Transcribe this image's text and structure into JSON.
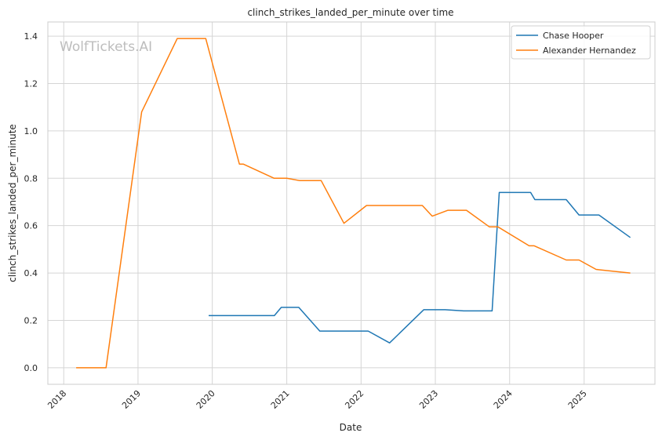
{
  "chart_data": {
    "type": "line",
    "title": "clinch_strikes_landed_per_minute over time",
    "xlabel": "Date",
    "ylabel": "clinch_strikes_landed_per_minute",
    "watermark": "WolfTickets.AI",
    "xlim": [
      "2017-10-15",
      "2025-12-15"
    ],
    "ylim": [
      -0.07,
      1.46
    ],
    "x_ticks": [
      "2018-01-01",
      "2019-01-01",
      "2020-01-01",
      "2021-01-01",
      "2022-01-01",
      "2023-01-01",
      "2024-01-01",
      "2025-01-01"
    ],
    "x_tick_labels": [
      "2018",
      "2019",
      "2020",
      "2021",
      "2022",
      "2023",
      "2024",
      "2025"
    ],
    "y_ticks": [
      0.0,
      0.2,
      0.4,
      0.6,
      0.8,
      1.0,
      1.2,
      1.4
    ],
    "y_tick_labels": [
      "0.0",
      "0.2",
      "0.4",
      "0.6",
      "0.8",
      "1.0",
      "1.2",
      "1.4"
    ],
    "grid": true,
    "legend_position": "top-right",
    "colors": {
      "grid": "#d5d5d5",
      "spine": "#cccccc"
    },
    "series": [
      {
        "name": "Chase Hooper",
        "color": "#1f77b4",
        "x": [
          "2019-12-14",
          "2020-11-01",
          "2020-12-05",
          "2021-03-01",
          "2021-06-12",
          "2022-02-05",
          "2022-05-21",
          "2022-11-05",
          "2023-02-18",
          "2023-05-20",
          "2023-10-07",
          "2023-11-11",
          "2024-04-13",
          "2024-05-04",
          "2024-10-05",
          "2024-12-07",
          "2025-03-15",
          "2025-08-16"
        ],
        "values": [
          0.22,
          0.22,
          0.255,
          0.255,
          0.155,
          0.155,
          0.105,
          0.245,
          0.245,
          0.24,
          0.24,
          0.74,
          0.74,
          0.71,
          0.71,
          0.645,
          0.645,
          0.55
        ]
      },
      {
        "name": "Alexander Hernandez",
        "color": "#ff7f0e",
        "x": [
          "2018-03-03",
          "2018-07-28",
          "2019-01-19",
          "2019-07-13",
          "2019-11-30",
          "2020-05-13",
          "2020-06-01",
          "2020-10-31",
          "2021-01-01",
          "2021-03-06",
          "2021-06-19",
          "2021-10-09",
          "2022-01-28",
          "2022-10-29",
          "2022-12-17",
          "2023-03-04",
          "2023-06-03",
          "2023-09-23",
          "2023-11-04",
          "2024-04-06",
          "2024-05-01",
          "2024-10-05",
          "2024-12-07",
          "2025-03-01",
          "2025-08-16"
        ],
        "values": [
          0.0,
          0.0,
          1.08,
          1.39,
          1.39,
          0.86,
          0.86,
          0.8,
          0.8,
          0.79,
          0.79,
          0.61,
          0.685,
          0.685,
          0.64,
          0.665,
          0.665,
          0.595,
          0.595,
          0.515,
          0.515,
          0.455,
          0.455,
          0.415,
          0.4
        ]
      }
    ]
  }
}
